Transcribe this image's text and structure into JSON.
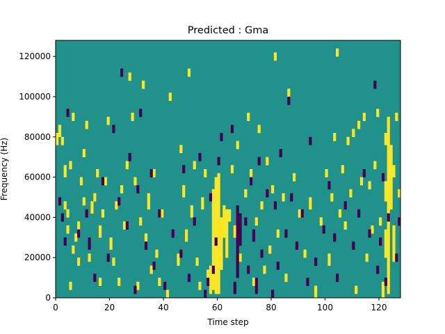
{
  "chart_data": {
    "type": "heatmap",
    "title": "Predicted : Gma",
    "xlabel": "Time step",
    "ylabel": "Frequency (Hz)",
    "xlim": [
      0,
      128
    ],
    "ylim": [
      0,
      128000
    ],
    "x_ticks": [
      0,
      20,
      40,
      60,
      80,
      100,
      120
    ],
    "y_ticks": [
      0,
      20000,
      40000,
      60000,
      80000,
      100000,
      120000
    ],
    "y_tick_labels": [
      "0",
      "20000",
      "40000",
      "60000",
      "80000",
      "100000",
      "120000"
    ],
    "colormap": "viridis",
    "colors": {
      "background": "#21918c",
      "high": "#fde725",
      "low": "#440154"
    },
    "legend": "none",
    "grid": false,
    "grid_size": [
      128,
      128
    ],
    "value_encoding": "cells are [time_step, freq_start_hz, freq_end_hz, value]; value 1 = high (yellow), -1 = low (purple); all other cells 0",
    "cells": [
      [
        0,
        76000,
        82000,
        1
      ],
      [
        1,
        80000,
        86000,
        1
      ],
      [
        2,
        76000,
        80000,
        1
      ],
      [
        3,
        44000,
        48000,
        1
      ],
      [
        3,
        60000,
        66000,
        1
      ],
      [
        4,
        32000,
        36000,
        1
      ],
      [
        4,
        40000,
        44000,
        1
      ],
      [
        5,
        64000,
        68000,
        1
      ],
      [
        5,
        4000,
        8000,
        1
      ],
      [
        6,
        22000,
        26000,
        1
      ],
      [
        6,
        88000,
        92000,
        1
      ],
      [
        7,
        28000,
        32000,
        1
      ],
      [
        8,
        16000,
        20000,
        1
      ],
      [
        8,
        34000,
        38000,
        1
      ],
      [
        9,
        56000,
        60000,
        1
      ],
      [
        10,
        46000,
        50000,
        1
      ],
      [
        10,
        70000,
        74000,
        1
      ],
      [
        11,
        84000,
        88000,
        1
      ],
      [
        12,
        18000,
        22000,
        1
      ],
      [
        13,
        42000,
        48000,
        1
      ],
      [
        14,
        48000,
        52000,
        1
      ],
      [
        15,
        60000,
        64000,
        1
      ],
      [
        16,
        6000,
        10000,
        1
      ],
      [
        16,
        30000,
        36000,
        1
      ],
      [
        17,
        40000,
        44000,
        1
      ],
      [
        18,
        56000,
        60000,
        1
      ],
      [
        19,
        86000,
        90000,
        1
      ],
      [
        20,
        24000,
        30000,
        1
      ],
      [
        21,
        16000,
        20000,
        1
      ],
      [
        22,
        44000,
        48000,
        1
      ],
      [
        23,
        6000,
        10000,
        1
      ],
      [
        24,
        52000,
        56000,
        1
      ],
      [
        25,
        34000,
        38000,
        1
      ],
      [
        26,
        64000,
        68000,
        1
      ],
      [
        27,
        108000,
        112000,
        1
      ],
      [
        28,
        88000,
        92000,
        1
      ],
      [
        29,
        56000,
        60000,
        1
      ],
      [
        30,
        4000,
        8000,
        1
      ],
      [
        31,
        36000,
        40000,
        1
      ],
      [
        32,
        104000,
        108000,
        1
      ],
      [
        33,
        26000,
        32000,
        1
      ],
      [
        34,
        44000,
        52000,
        1
      ],
      [
        35,
        12000,
        16000,
        1
      ],
      [
        36,
        60000,
        64000,
        1
      ],
      [
        37,
        20000,
        24000,
        1
      ],
      [
        38,
        6000,
        10000,
        1
      ],
      [
        39,
        40000,
        44000,
        1
      ],
      [
        41,
        0,
        4000,
        1
      ],
      [
        42,
        98000,
        102000,
        1
      ],
      [
        45,
        16000,
        22000,
        1
      ],
      [
        46,
        72000,
        76000,
        1
      ],
      [
        47,
        50000,
        56000,
        1
      ],
      [
        48,
        28000,
        34000,
        1
      ],
      [
        49,
        110000,
        114000,
        1
      ],
      [
        50,
        40000,
        46000,
        1
      ],
      [
        51,
        64000,
        68000,
        1
      ],
      [
        52,
        16000,
        20000,
        1
      ],
      [
        53,
        4000,
        8000,
        1
      ],
      [
        54,
        44000,
        50000,
        1
      ],
      [
        55,
        60000,
        64000,
        1
      ],
      [
        56,
        10000,
        14000,
        1
      ],
      [
        57,
        2000,
        16000,
        1
      ],
      [
        58,
        4000,
        54000,
        1
      ],
      [
        59,
        2000,
        60000,
        1
      ],
      [
        60,
        2000,
        62000,
        1
      ],
      [
        61,
        14000,
        40000,
        1
      ],
      [
        62,
        30000,
        46000,
        1
      ],
      [
        63,
        20000,
        44000,
        1
      ],
      [
        64,
        38000,
        44000,
        1
      ],
      [
        65,
        62000,
        66000,
        1
      ],
      [
        66,
        30000,
        36000,
        1
      ],
      [
        67,
        74000,
        78000,
        1
      ],
      [
        68,
        18000,
        22000,
        1
      ],
      [
        70,
        50000,
        54000,
        1
      ],
      [
        71,
        88000,
        92000,
        1
      ],
      [
        72,
        60000,
        64000,
        1
      ],
      [
        73,
        6000,
        10000,
        1
      ],
      [
        74,
        36000,
        40000,
        1
      ],
      [
        75,
        82000,
        86000,
        1
      ],
      [
        76,
        44000,
        48000,
        1
      ],
      [
        77,
        12000,
        16000,
        1
      ],
      [
        78,
        66000,
        70000,
        1
      ],
      [
        79,
        22000,
        26000,
        1
      ],
      [
        80,
        52000,
        56000,
        1
      ],
      [
        81,
        118000,
        122000,
        1
      ],
      [
        82,
        30000,
        34000,
        1
      ],
      [
        84,
        48000,
        52000,
        1
      ],
      [
        85,
        8000,
        12000,
        1
      ],
      [
        86,
        100000,
        104000,
        1
      ],
      [
        88,
        58000,
        62000,
        1
      ],
      [
        90,
        40000,
        44000,
        1
      ],
      [
        92,
        20000,
        24000,
        1
      ],
      [
        94,
        44000,
        50000,
        1
      ],
      [
        96,
        0,
        6000,
        1
      ],
      [
        98,
        36000,
        40000,
        1
      ],
      [
        100,
        60000,
        64000,
        1
      ],
      [
        101,
        16000,
        22000,
        1
      ],
      [
        102,
        48000,
        52000,
        1
      ],
      [
        103,
        78000,
        82000,
        1
      ],
      [
        104,
        120000,
        124000,
        1
      ],
      [
        105,
        40000,
        44000,
        1
      ],
      [
        106,
        62000,
        66000,
        1
      ],
      [
        107,
        34000,
        38000,
        1
      ],
      [
        108,
        76000,
        80000,
        1
      ],
      [
        109,
        50000,
        54000,
        1
      ],
      [
        110,
        80000,
        84000,
        1
      ],
      [
        111,
        2000,
        6000,
        1
      ],
      [
        112,
        84000,
        88000,
        1
      ],
      [
        113,
        56000,
        60000,
        1
      ],
      [
        114,
        88000,
        92000,
        1
      ],
      [
        115,
        18000,
        22000,
        1
      ],
      [
        116,
        54000,
        58000,
        1
      ],
      [
        117,
        32000,
        36000,
        1
      ],
      [
        118,
        64000,
        68000,
        1
      ],
      [
        119,
        90000,
        94000,
        1
      ],
      [
        120,
        36000,
        40000,
        1
      ],
      [
        121,
        0,
        8000,
        1
      ],
      [
        122,
        20000,
        34000,
        1
      ],
      [
        122,
        48000,
        58000,
        1
      ],
      [
        122,
        76000,
        82000,
        1
      ],
      [
        123,
        2000,
        90000,
        1
      ],
      [
        124,
        44000,
        76000,
        1
      ],
      [
        125,
        18000,
        36000,
        1
      ],
      [
        125,
        60000,
        66000,
        1
      ],
      [
        126,
        88000,
        92000,
        1
      ],
      [
        127,
        50000,
        54000,
        1
      ],
      [
        1,
        46000,
        50000,
        -1
      ],
      [
        2,
        38000,
        42000,
        -1
      ],
      [
        3,
        26000,
        30000,
        -1
      ],
      [
        4,
        90000,
        94000,
        -1
      ],
      [
        8,
        30000,
        34000,
        -1
      ],
      [
        11,
        40000,
        44000,
        -1
      ],
      [
        12,
        24000,
        30000,
        -1
      ],
      [
        14,
        8000,
        12000,
        -1
      ],
      [
        17,
        56000,
        60000,
        -1
      ],
      [
        19,
        18000,
        22000,
        -1
      ],
      [
        21,
        82000,
        86000,
        -1
      ],
      [
        23,
        46000,
        50000,
        -1
      ],
      [
        24,
        110000,
        114000,
        -1
      ],
      [
        26,
        34000,
        38000,
        -1
      ],
      [
        27,
        68000,
        72000,
        -1
      ],
      [
        29,
        2000,
        6000,
        -1
      ],
      [
        30,
        52000,
        56000,
        -1
      ],
      [
        31,
        90000,
        94000,
        -1
      ],
      [
        33,
        24000,
        28000,
        -1
      ],
      [
        35,
        60000,
        64000,
        -1
      ],
      [
        36,
        14000,
        18000,
        -1
      ],
      [
        38,
        40000,
        44000,
        -1
      ],
      [
        40,
        4000,
        8000,
        -1
      ],
      [
        43,
        30000,
        34000,
        -1
      ],
      [
        46,
        20000,
        24000,
        -1
      ],
      [
        47,
        62000,
        66000,
        -1
      ],
      [
        49,
        8000,
        12000,
        -1
      ],
      [
        51,
        36000,
        40000,
        -1
      ],
      [
        53,
        68000,
        72000,
        -1
      ],
      [
        55,
        0,
        4000,
        -1
      ],
      [
        56,
        6000,
        10000,
        -1
      ],
      [
        57,
        48000,
        52000,
        -1
      ],
      [
        58,
        12000,
        16000,
        -1
      ],
      [
        59,
        26000,
        30000,
        -1
      ],
      [
        60,
        66000,
        70000,
        -1
      ],
      [
        61,
        78000,
        82000,
        -1
      ],
      [
        65,
        82000,
        86000,
        -1
      ],
      [
        66,
        2000,
        8000,
        -1
      ],
      [
        67,
        10000,
        46000,
        -1
      ],
      [
        68,
        26000,
        42000,
        -1
      ],
      [
        70,
        36000,
        40000,
        -1
      ],
      [
        71,
        12000,
        16000,
        -1
      ],
      [
        72,
        56000,
        60000,
        -1
      ],
      [
        73,
        28000,
        34000,
        -1
      ],
      [
        74,
        2000,
        10000,
        -1
      ],
      [
        75,
        66000,
        70000,
        -1
      ],
      [
        76,
        20000,
        24000,
        -1
      ],
      [
        78,
        50000,
        54000,
        -1
      ],
      [
        80,
        0,
        4000,
        -1
      ],
      [
        81,
        44000,
        48000,
        -1
      ],
      [
        82,
        14000,
        18000,
        -1
      ],
      [
        83,
        70000,
        74000,
        -1
      ],
      [
        85,
        30000,
        34000,
        -1
      ],
      [
        86,
        96000,
        100000,
        -1
      ],
      [
        87,
        48000,
        52000,
        -1
      ],
      [
        89,
        24000,
        28000,
        -1
      ],
      [
        91,
        40000,
        44000,
        -1
      ],
      [
        93,
        6000,
        10000,
        -1
      ],
      [
        94,
        76000,
        80000,
        -1
      ],
      [
        96,
        16000,
        20000,
        -1
      ],
      [
        99,
        32000,
        36000,
        -1
      ],
      [
        101,
        54000,
        58000,
        -1
      ],
      [
        103,
        28000,
        32000,
        -1
      ],
      [
        104,
        8000,
        12000,
        -1
      ],
      [
        107,
        44000,
        48000,
        -1
      ],
      [
        110,
        24000,
        28000,
        -1
      ],
      [
        112,
        40000,
        44000,
        -1
      ],
      [
        114,
        60000,
        64000,
        -1
      ],
      [
        116,
        30000,
        34000,
        -1
      ],
      [
        118,
        104000,
        108000,
        -1
      ],
      [
        119,
        12000,
        16000,
        -1
      ],
      [
        120,
        26000,
        30000,
        -1
      ],
      [
        121,
        58000,
        62000,
        -1
      ],
      [
        122,
        6000,
        10000,
        -1
      ],
      [
        123,
        38000,
        42000,
        -1
      ],
      [
        126,
        18000,
        22000,
        -1
      ],
      [
        127,
        36000,
        40000,
        -1
      ]
    ]
  }
}
